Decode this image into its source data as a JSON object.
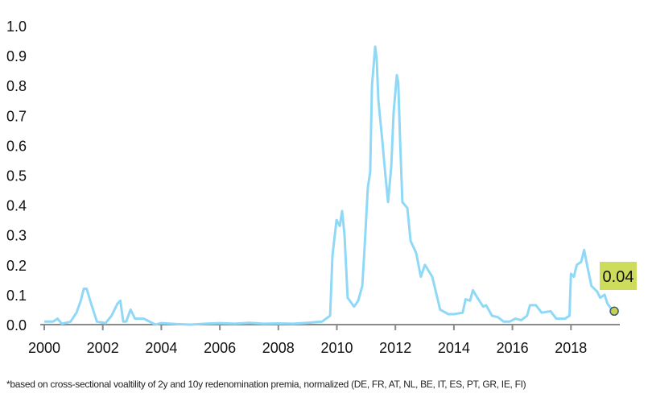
{
  "chart_data": {
    "type": "line",
    "title": "",
    "xlabel": "",
    "ylabel": "",
    "xlim": [
      2000,
      2019.6
    ],
    "ylim": [
      0,
      1.0
    ],
    "x_ticks": [
      "2000",
      "2002",
      "2004",
      "2006",
      "2008",
      "2010",
      "2012",
      "2014",
      "2016",
      "2018"
    ],
    "y_ticks": [
      "0.0",
      "0.1",
      "0.2",
      "0.3",
      "0.4",
      "0.5",
      "0.6",
      "0.7",
      "0.8",
      "0.9",
      "1.0"
    ],
    "grid": false,
    "series_color": "#8fd9f7",
    "series": [
      {
        "x": [
          2000.0,
          2000.3,
          2000.45,
          2000.6,
          2000.9,
          2001.1,
          2001.25,
          2001.35,
          2001.45,
          2001.6,
          2001.8,
          2002.1,
          2002.3,
          2002.5,
          2002.6,
          2002.7,
          2002.8,
          2002.95,
          2003.1,
          2003.4,
          2003.6,
          2003.8,
          2004.0,
          2004.5,
          2005.0,
          2005.5,
          2006.0,
          2006.5,
          2007.0,
          2007.5,
          2008.0,
          2008.5,
          2009.0,
          2009.49,
          2009.77,
          2009.85,
          2009.99,
          2010.1,
          2010.18,
          2010.26,
          2010.37,
          2010.59,
          2010.73,
          2010.87,
          2010.95,
          2011.06,
          2011.14,
          2011.2,
          2011.31,
          2011.36,
          2011.42,
          2011.55,
          2011.66,
          2011.75,
          2011.86,
          2011.94,
          2012.05,
          2012.1,
          2012.16,
          2012.24,
          2012.41,
          2012.52,
          2012.71,
          2012.87,
          2013.01,
          2013.26,
          2013.53,
          2013.81,
          2014.0,
          2014.3,
          2014.4,
          2014.55,
          2014.65,
          2014.8,
          2015.0,
          2015.1,
          2015.3,
          2015.5,
          2015.7,
          2015.9,
          2016.1,
          2016.3,
          2016.5,
          2016.6,
          2016.8,
          2017.0,
          2017.3,
          2017.5,
          2017.8,
          2017.95,
          2018.0,
          2018.1,
          2018.2,
          2018.35,
          2018.45,
          2018.55,
          2018.7,
          2018.9,
          2019.0,
          2019.15,
          2019.25,
          2019.4,
          2019.48
        ],
        "y": [
          0.01,
          0.01,
          0.02,
          0.003,
          0.01,
          0.04,
          0.08,
          0.12,
          0.12,
          0.07,
          0.01,
          0.005,
          0.03,
          0.07,
          0.08,
          0.01,
          0.01,
          0.05,
          0.02,
          0.02,
          0.01,
          0.0,
          0.005,
          0.002,
          0.0,
          0.003,
          0.005,
          0.003,
          0.006,
          0.003,
          0.004,
          0.003,
          0.006,
          0.01,
          0.03,
          0.23,
          0.35,
          0.33,
          0.38,
          0.3,
          0.09,
          0.06,
          0.08,
          0.13,
          0.26,
          0.46,
          0.51,
          0.8,
          0.93,
          0.89,
          0.75,
          0.62,
          0.5,
          0.41,
          0.53,
          0.71,
          0.835,
          0.81,
          0.62,
          0.41,
          0.39,
          0.28,
          0.24,
          0.16,
          0.2,
          0.16,
          0.05,
          0.035,
          0.035,
          0.04,
          0.085,
          0.08,
          0.115,
          0.09,
          0.06,
          0.065,
          0.03,
          0.025,
          0.01,
          0.01,
          0.02,
          0.015,
          0.03,
          0.065,
          0.065,
          0.04,
          0.045,
          0.02,
          0.02,
          0.03,
          0.17,
          0.16,
          0.2,
          0.21,
          0.25,
          0.2,
          0.13,
          0.11,
          0.09,
          0.1,
          0.07,
          0.05,
          0.045
        ]
      }
    ],
    "annotation": {
      "label": "0.04",
      "x": 2019.48,
      "box_color": "#cddc5a",
      "marker_color": "#c6d34e"
    }
  },
  "footnote": "*based on cross-sectional voaltility of 2y and 10y redenomination premia, normalized (DE, FR, AT, NL, BE, IT, ES, PT, GR, IE, FI)"
}
